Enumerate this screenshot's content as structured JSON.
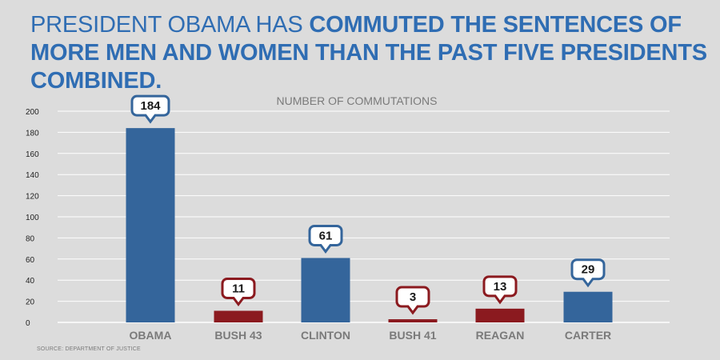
{
  "headline": {
    "regular": "PRESIDENT OBAMA HAS ",
    "bold": "COMMUTED THE SENTENCES OF MORE MEN AND WOMEN THAN THE PAST FIVE PRESIDENTS COMBINED."
  },
  "source": "SOURCE: DEPARTMENT OF JUSTICE",
  "colors": {
    "headline": "#2f6db3",
    "bar_blue": "#34659b",
    "bar_red": "#8b1a1f",
    "background": "#dcdcdc",
    "grid": "#ffffff"
  },
  "chart_data": {
    "type": "bar",
    "title": "NUMBER OF COMMUTATIONS",
    "categories": [
      "OBAMA",
      "BUSH 43",
      "CLINTON",
      "BUSH 41",
      "REAGAN",
      "CARTER"
    ],
    "values": [
      184,
      11,
      61,
      3,
      13,
      29
    ],
    "bar_colors": [
      "#34659b",
      "#8b1a1f",
      "#34659b",
      "#8b1a1f",
      "#8b1a1f",
      "#34659b"
    ],
    "ylim": [
      0,
      200
    ],
    "yticks": [
      0,
      20,
      40,
      60,
      80,
      100,
      120,
      140,
      160,
      180,
      200
    ],
    "grid": true,
    "data_labels": [
      "184",
      "11",
      "61",
      "3",
      "13",
      "29"
    ]
  }
}
